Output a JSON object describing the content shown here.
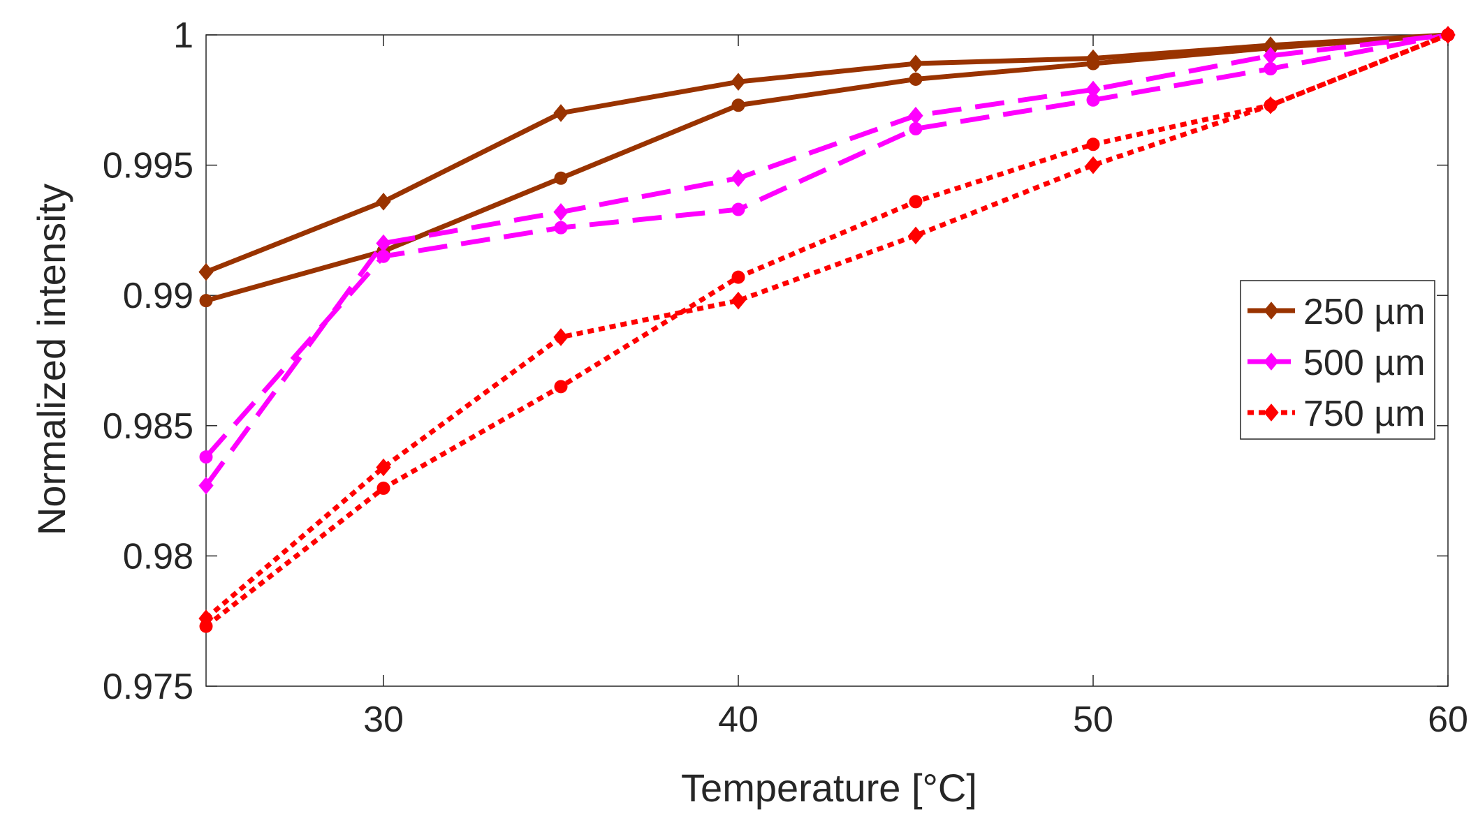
{
  "chart_data": {
    "type": "line",
    "title": "",
    "xlabel": "Temperature [°C]",
    "ylabel": "Normalized intensity",
    "xlim": [
      25,
      60
    ],
    "ylim": [
      0.975,
      1.0
    ],
    "xticks": [
      30,
      40,
      50,
      60
    ],
    "xtick_labels": [
      "30",
      "40",
      "50",
      "60"
    ],
    "yticks": [
      0.975,
      0.98,
      0.985,
      0.99,
      0.995,
      1.0
    ],
    "ytick_labels": [
      "0.975",
      "0.98",
      "0.985",
      "0.99",
      "0.995",
      "1"
    ],
    "grid": false,
    "legend_position": "right",
    "legend": [
      {
        "label": "250 µm",
        "color": "#993300",
        "style": "solid",
        "marker": "diamond"
      },
      {
        "label": "500 µm",
        "color": "#ff00ff",
        "style": "dashed",
        "marker": "diamond"
      },
      {
        "label": "750 µm",
        "color": "#ff0000",
        "style": "dotted",
        "marker": "diamond"
      }
    ],
    "x": [
      25,
      30,
      35,
      40,
      45,
      50,
      55,
      60
    ],
    "series": [
      {
        "name": "250 µm (diamond)",
        "color": "#993300",
        "style": "solid",
        "marker": "diamond",
        "values": [
          0.9909,
          0.9936,
          0.997,
          0.9982,
          0.9989,
          0.9991,
          0.9996,
          1.0
        ]
      },
      {
        "name": "250 µm (circle)",
        "color": "#993300",
        "style": "solid",
        "marker": "circle",
        "values": [
          0.9898,
          0.9917,
          0.9945,
          0.9973,
          0.9983,
          0.9989,
          0.9995,
          1.0
        ]
      },
      {
        "name": "500 µm (diamond)",
        "color": "#ff00ff",
        "style": "dashed",
        "marker": "diamond",
        "values": [
          0.9827,
          0.992,
          0.9932,
          0.9945,
          0.9969,
          0.9979,
          0.9992,
          1.0
        ]
      },
      {
        "name": "500 µm (circle)",
        "color": "#ff00ff",
        "style": "dashed",
        "marker": "circle",
        "values": [
          0.9838,
          0.9915,
          0.9926,
          0.9933,
          0.9964,
          0.9975,
          0.9987,
          1.0
        ]
      },
      {
        "name": "750 µm (diamond)",
        "color": "#ff0000",
        "style": "dotted",
        "marker": "diamond",
        "values": [
          0.9776,
          0.9834,
          0.9884,
          0.9898,
          0.9923,
          0.995,
          0.9973,
          1.0
        ]
      },
      {
        "name": "750 µm (circle)",
        "color": "#ff0000",
        "style": "dotted",
        "marker": "circle",
        "values": [
          0.9773,
          0.9826,
          0.9865,
          0.9907,
          0.9936,
          0.9958,
          0.9973,
          1.0
        ]
      }
    ]
  }
}
